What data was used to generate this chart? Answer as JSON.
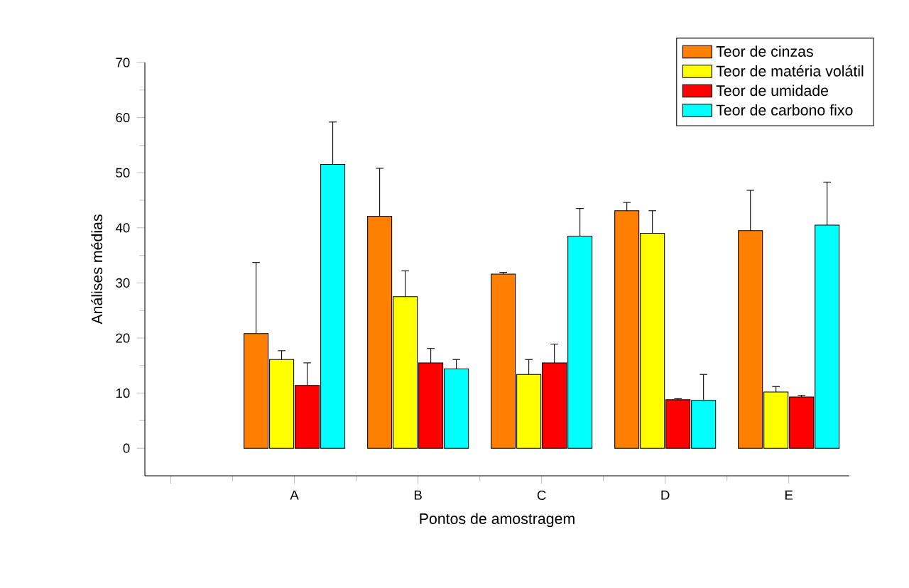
{
  "chart_data": {
    "type": "bar",
    "xlabel": "Pontos de amostragem",
    "ylabel": "Análises médias",
    "categories": [
      null,
      "A",
      "B",
      "C",
      "D",
      "E"
    ],
    "series": [
      {
        "name": "Teor de cinzas",
        "color": "#ff8000",
        "values": [
          null,
          20.8,
          42.1,
          31.6,
          43.1,
          39.5
        ],
        "errors": [
          null,
          12.9,
          8.7,
          0.3,
          1.5,
          7.3
        ]
      },
      {
        "name": "Teor de matéria volátil",
        "color": "#ffff00",
        "values": [
          null,
          16.1,
          27.5,
          13.4,
          39.0,
          10.2
        ],
        "errors": [
          null,
          1.6,
          4.7,
          2.7,
          4.1,
          1.0
        ]
      },
      {
        "name": "Teor de umidade",
        "color": "#ff0000",
        "values": [
          null,
          11.4,
          15.5,
          15.5,
          8.8,
          9.3
        ],
        "errors": [
          null,
          4.1,
          2.6,
          3.4,
          0.2,
          0.3
        ]
      },
      {
        "name": "Teor de carbono fixo",
        "color": "#00ffff",
        "values": [
          null,
          51.5,
          14.4,
          38.5,
          8.7,
          40.5
        ],
        "errors": [
          null,
          7.7,
          1.7,
          5.0,
          4.7,
          7.8
        ]
      }
    ],
    "ylim": [
      -5,
      70
    ],
    "yticks": [
      0,
      10,
      20,
      30,
      40,
      50,
      60,
      70
    ],
    "legend": "top right",
    "grid": false
  }
}
